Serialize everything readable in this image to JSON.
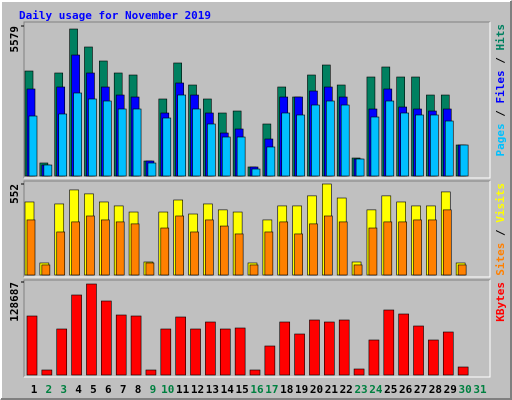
{
  "chart_data": {
    "type": "bar",
    "title": "Daily usage for November 2019",
    "title_color": "#0000ff",
    "categories": [
      "1",
      "2",
      "3",
      "4",
      "5",
      "6",
      "7",
      "8",
      "9",
      "10",
      "11",
      "12",
      "13",
      "14",
      "15",
      "16",
      "17",
      "18",
      "19",
      "20",
      "21",
      "22",
      "23",
      "24",
      "25",
      "26",
      "27",
      "28",
      "29",
      "30",
      "31"
    ],
    "category_colors": [
      "#000000",
      "#008040",
      "#008040",
      "#000000",
      "#000000",
      "#000000",
      "#000000",
      "#000000",
      "#008040",
      "#008040",
      "#000000",
      "#000000",
      "#000000",
      "#000000",
      "#000000",
      "#008040",
      "#008040",
      "#000000",
      "#000000",
      "#000000",
      "#000000",
      "#000000",
      "#008040",
      "#008040",
      "#000000",
      "#000000",
      "#000000",
      "#000000",
      "#000000",
      "#008040",
      "#008040"
    ],
    "legend_separator": " / ",
    "panels": [
      {
        "ylim": [
          0,
          5579
        ],
        "yticks": [
          5579
        ],
        "series": [
          {
            "name": "Hits",
            "color": "#008060",
            "values": [
              3905,
              484,
              3831,
              5467,
              4798,
              4277,
              3831,
              3756,
              558,
              2864,
              4203,
              3384,
              2864,
              2343,
              2417,
              335,
              1934,
              3310,
              2938,
              3756,
              4128,
              3384,
              669,
              3682,
              4054,
              3682,
              3682,
              3012,
              3012,
              1153,
              0
            ]
          },
          {
            "name": "Files",
            "color": "#0000ff",
            "values": [
              3236,
              409,
              3310,
              4500,
              3831,
              3310,
              3012,
              2938,
              558,
              2343,
              3459,
              3012,
              2343,
              1599,
              1748,
              335,
              1376,
              2938,
              2938,
              3161,
              3310,
              2938,
              632,
              2492,
              3236,
              2566,
              2492,
              2417,
              2492,
              1153,
              0
            ]
          },
          {
            "name": "Pages",
            "color": "#00c0ff",
            "values": [
              2231,
              409,
              2306,
              3087,
              2864,
              2789,
              2492,
              2492,
              483,
              2157,
              3012,
              2492,
              1934,
              1450,
              1450,
              260,
              1079,
              2343,
              2269,
              2640,
              2789,
              2640,
              632,
              2194,
              2789,
              2343,
              2269,
              2269,
              2045,
              1153,
              0
            ]
          }
        ]
      },
      {
        "ylim": [
          0,
          552
        ],
        "yticks": [
          552
        ],
        "series": [
          {
            "name": "Visits",
            "color": "#ffff00",
            "values": [
              443,
              73,
              431,
              516,
              492,
              443,
              419,
              382,
              79,
              382,
              455,
              370,
              431,
              395,
              382,
              73,
              334,
              419,
              419,
              480,
              552,
              467,
              79,
              395,
              480,
              443,
              419,
              419,
              504,
              73,
              0
            ]
          },
          {
            "name": "Sites",
            "color": "#ff8000",
            "values": [
              334,
              61,
              261,
              322,
              358,
              334,
              322,
              310,
              73,
              285,
              358,
              261,
              334,
              297,
              249,
              61,
              261,
              322,
              249,
              310,
              358,
              322,
              61,
              285,
              322,
              322,
              334,
              334,
              395,
              61,
              0
            ]
          }
        ]
      },
      {
        "ylim": [
          0,
          128687
        ],
        "yticks": [
          128687
        ],
        "series": [
          {
            "name": "KBytes",
            "color": "#ff0000",
            "values": [
              81638,
              6918,
              63650,
              110696,
              125917,
              102394,
              83022,
              81638,
              6918,
              63650,
              80255,
              63650,
              73336,
              63650,
              65034,
              6918,
              40127,
              73336,
              56732,
              76104,
              73336,
              76104,
              8302,
              48430,
              89941,
              84406,
              67801,
              48430,
              59499,
              11070,
              0
            ]
          }
        ]
      }
    ]
  }
}
